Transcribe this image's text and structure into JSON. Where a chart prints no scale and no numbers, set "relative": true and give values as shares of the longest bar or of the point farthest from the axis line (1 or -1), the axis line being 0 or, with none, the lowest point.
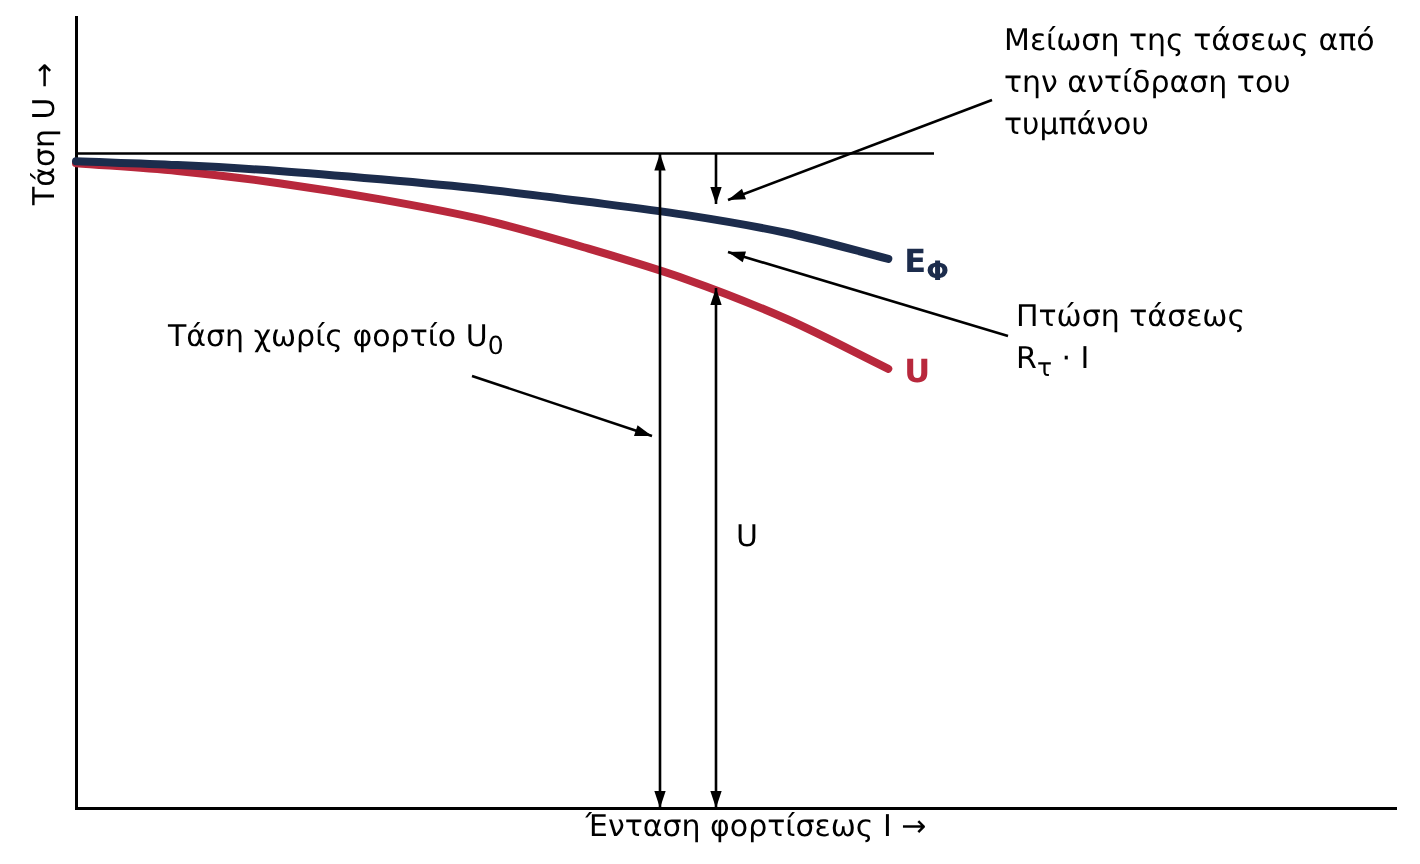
{
  "chart_data": {
    "type": "line",
    "relative": true,
    "xlabel": "Ένταση φορτίσεως I →",
    "ylabel": "Τάση U →",
    "categories": [
      null,
      null,
      null,
      null,
      null,
      null,
      null,
      null,
      null,
      null,
      null,
      null,
      null,
      null
    ],
    "series": [
      {
        "name": "E$_{Φ}$",
        "color": "#1c2c4c",
        "values": [
          1,
          0.994,
          0.985,
          0.972,
          0.957,
          0.938,
          0.917,
          0.889,
          0.849,
          null,
          null,
          null,
          null,
          null
        ]
      },
      {
        "name": "U",
        "color": "#b8283c",
        "values": [
          0.997,
          0.985,
          0.966,
          0.941,
          0.91,
          0.867,
          0.818,
          0.756,
          0.679,
          null,
          null,
          null,
          null,
          null
        ]
      }
    ],
    "ref_lines": [
      {
        "axis": "y",
        "value": 1.012,
        "color": "#000000"
      }
    ],
    "annotations": [
      "Μείωση της τάσεως από την αντίδραση του τυμπάνου",
      "Πτώση τάσεως R$_{τ}$ · I",
      "Τάση χωρίς φορτίο U$_{0}$",
      "U"
    ],
    "legend": false,
    "grid": false,
    "marker": "none"
  }
}
